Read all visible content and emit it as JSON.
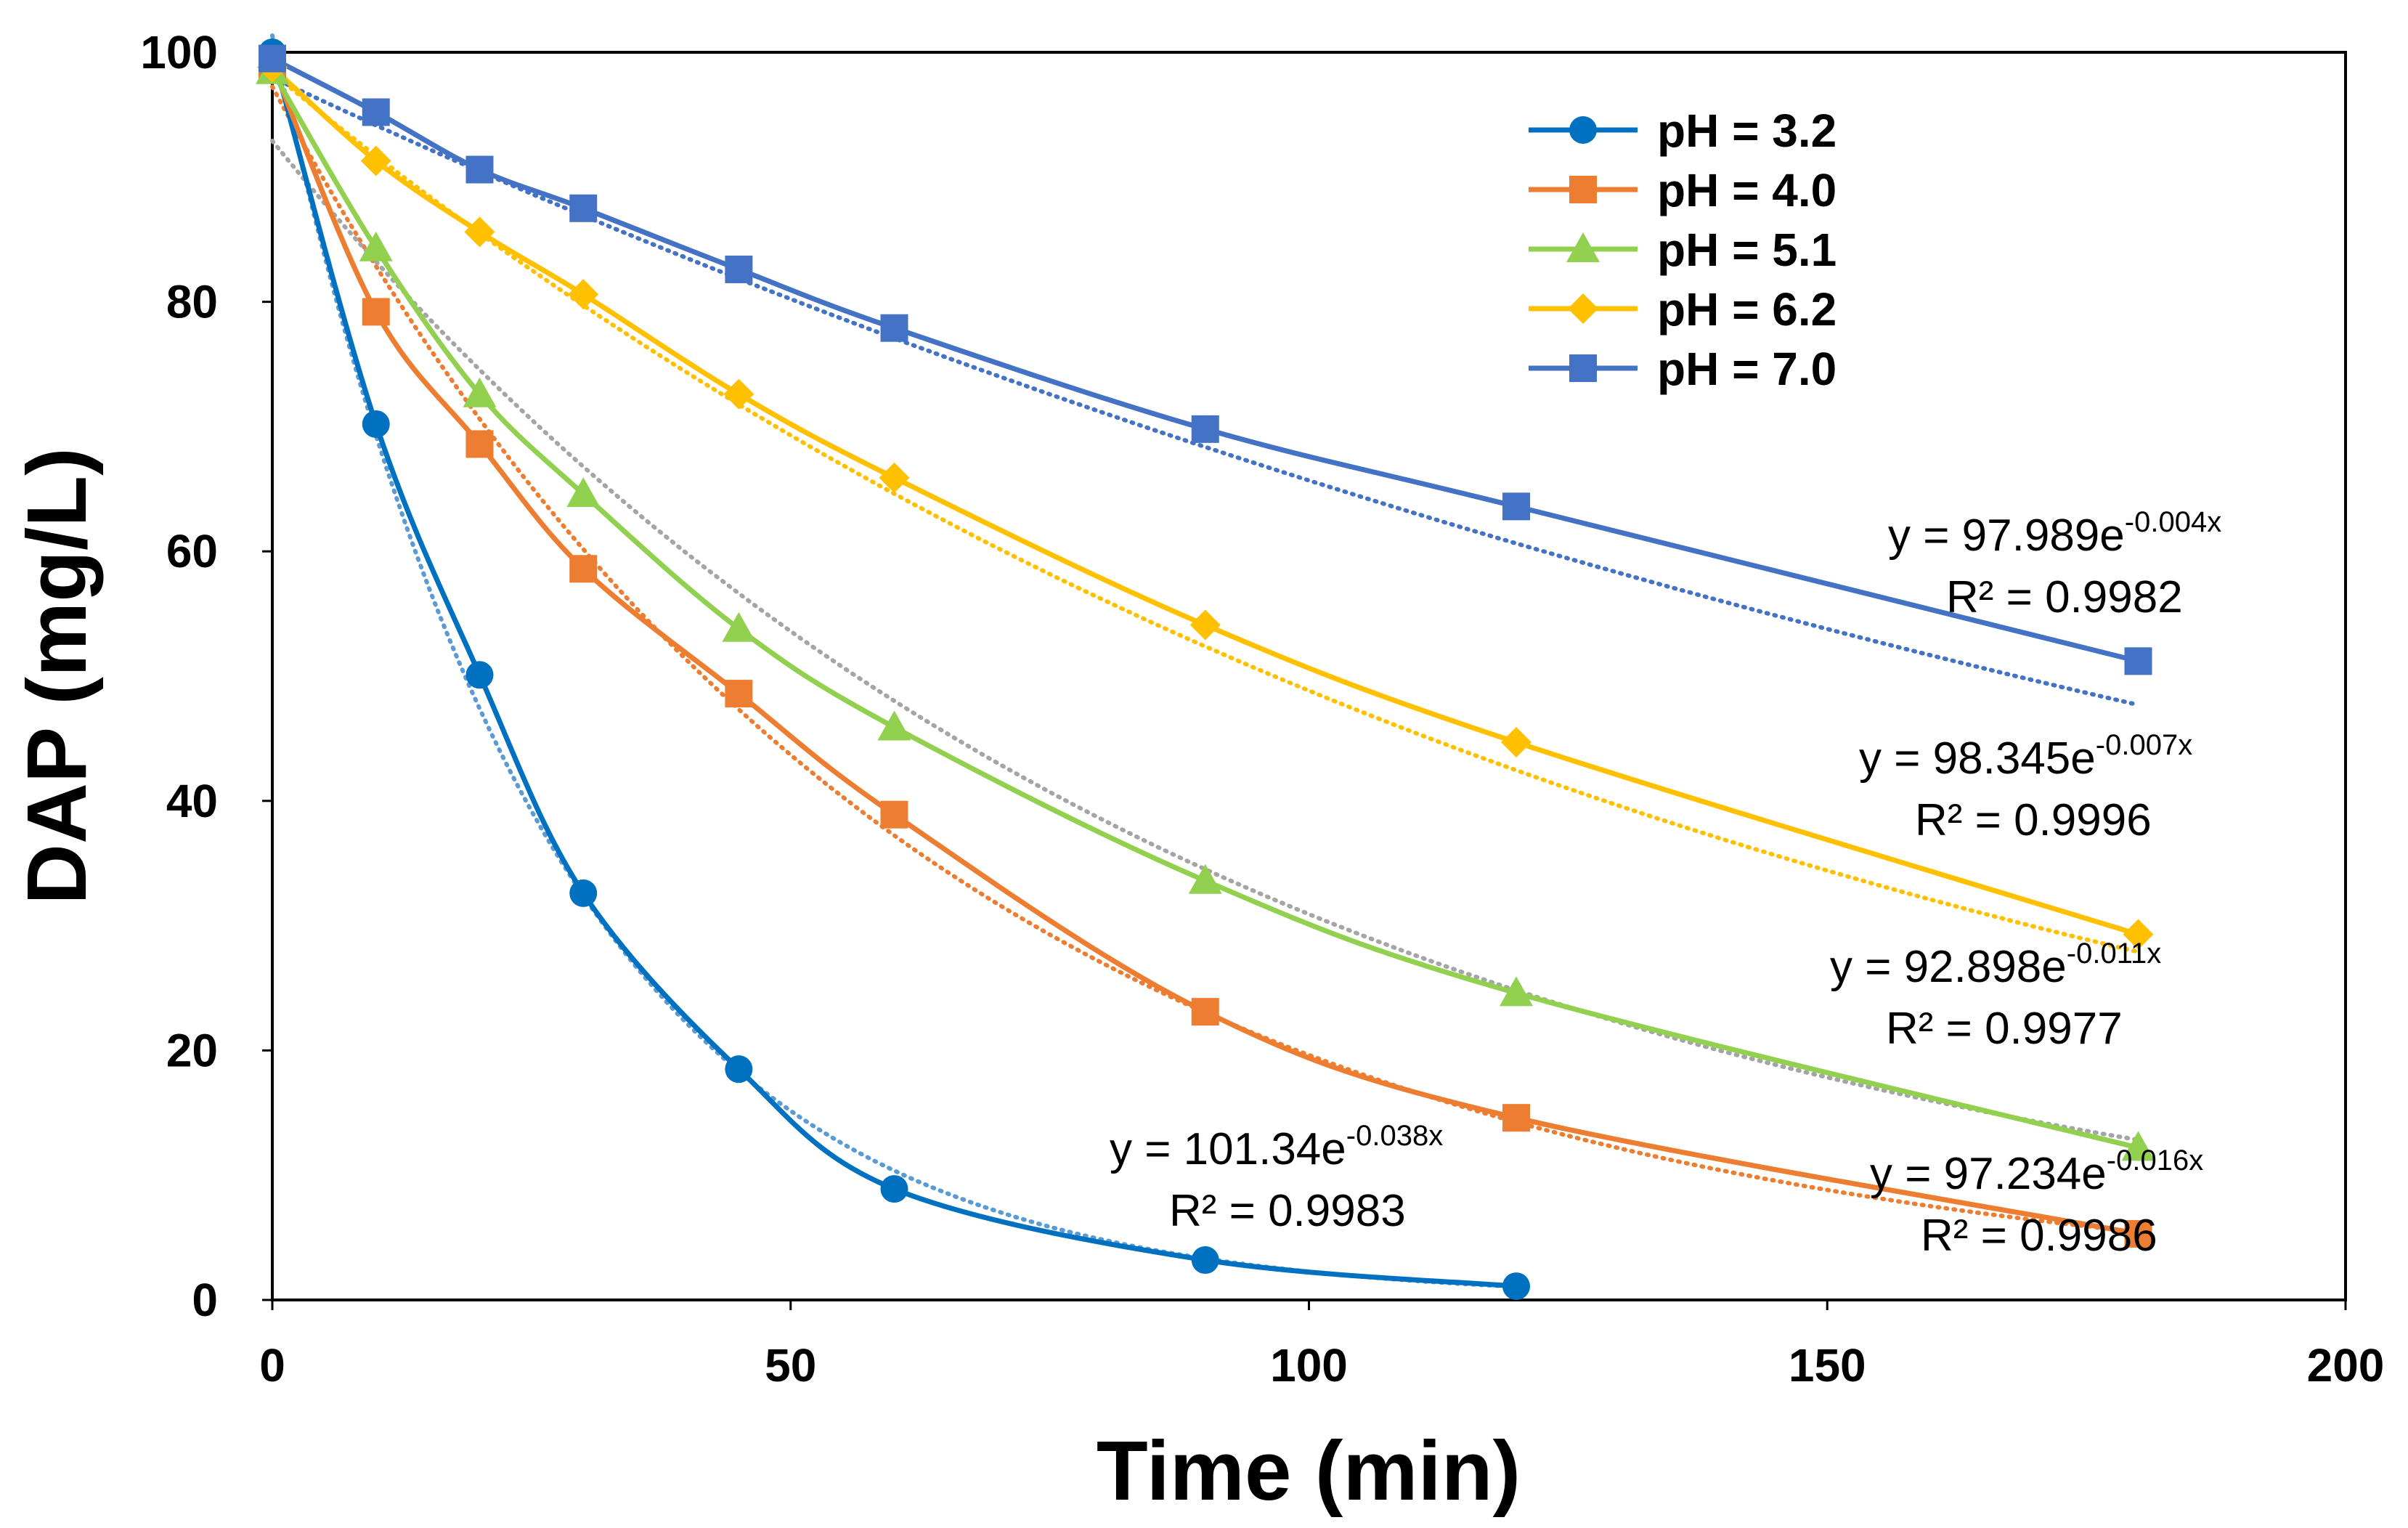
{
  "chart_data": {
    "type": "line",
    "title": "",
    "xlabel": "Time (min)",
    "ylabel": "DAP (mg/L)",
    "xlim": [
      0,
      200
    ],
    "ylim": [
      0,
      100
    ],
    "x_ticks": [
      0,
      50,
      100,
      150,
      200
    ],
    "y_ticks": [
      0,
      20,
      40,
      60,
      80,
      100
    ],
    "grid": false,
    "legend_position": "top-right",
    "series": [
      {
        "name": "pH = 3.2",
        "color": "#0070C0",
        "trend_color": "#5B9BD5",
        "marker": "circle",
        "x": [
          0,
          10,
          20,
          30,
          45,
          60,
          90,
          120
        ],
        "y": [
          100,
          70.2,
          50.1,
          32.6,
          18.5,
          8.9,
          3.2,
          1.1
        ],
        "fit": {
          "a": 101.34,
          "k": -0.038,
          "equation_prefix": "y = 101.34e",
          "exponent": "-0.038x",
          "r2": "R² = 0.9983"
        }
      },
      {
        "name": "pH = 4.0",
        "color": "#ED7D31",
        "trend_color": "#ED7D31",
        "marker": "square",
        "x": [
          0,
          10,
          20,
          30,
          45,
          60,
          90,
          120,
          180
        ],
        "y": [
          99,
          79.2,
          68.6,
          58.6,
          48.6,
          38.9,
          23.1,
          14.6,
          5.3
        ],
        "fit": {
          "a": 97.234,
          "k": -0.016,
          "equation_prefix": "y = 97.234e",
          "exponent": "-0.016x",
          "r2": "R² = 0.9986"
        }
      },
      {
        "name": "pH = 5.1",
        "color": "#92D050",
        "trend_color": "#A5A5A5",
        "marker": "triangle",
        "x": [
          0,
          10,
          20,
          30,
          45,
          60,
          90,
          120,
          180
        ],
        "y": [
          98.5,
          84.3,
          72.6,
          64.6,
          53.8,
          45.9,
          33.6,
          24.6,
          12.2
        ],
        "fit": {
          "a": 92.898,
          "k": -0.011,
          "equation_prefix": "y = 92.898e",
          "exponent": "-0.011x",
          "r2": "R² = 0.9977"
        }
      },
      {
        "name": "pH = 6.2",
        "color": "#FFC000",
        "trend_color": "#FFC000",
        "marker": "diamond",
        "x": [
          0,
          10,
          20,
          30,
          45,
          60,
          90,
          120,
          180
        ],
        "y": [
          98.8,
          91.3,
          85.6,
          80.6,
          72.6,
          65.9,
          54.1,
          44.7,
          29.3
        ],
        "fit": {
          "a": 98.345,
          "k": -0.007,
          "equation_prefix": "y = 98.345e",
          "exponent": "-0.007x",
          "r2": "R² = 0.9996"
        }
      },
      {
        "name": "pH = 7.0",
        "color": "#4472C4",
        "trend_color": "#4472C4",
        "marker": "square",
        "x": [
          0,
          10,
          20,
          30,
          45,
          60,
          90,
          120,
          180
        ],
        "y": [
          99.5,
          95.2,
          90.6,
          87.5,
          82.6,
          77.9,
          69.8,
          63.6,
          51.2
        ],
        "fit": {
          "a": 97.989,
          "k": -0.004,
          "equation_prefix": "y = 97.989e",
          "exponent": "-0.004x",
          "r2": "R² = 0.9982"
        }
      }
    ]
  }
}
